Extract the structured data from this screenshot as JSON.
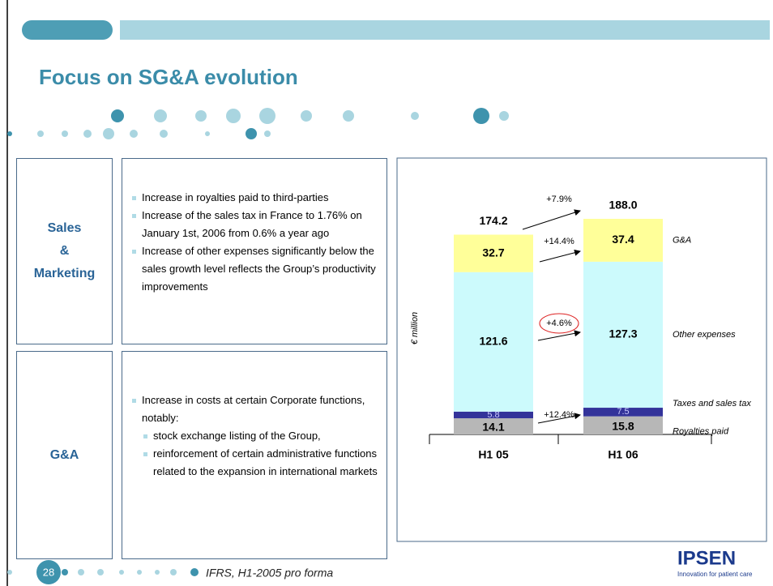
{
  "title": "Focus on SG&A evolution",
  "panels": [
    {
      "label_lines": [
        "Sales",
        "&",
        "Marketing"
      ],
      "bullets": [
        "Increase in royalties paid to third-parties",
        "Increase of the sales tax in France to 1.76% on January 1st, 2006 from 0.6% a year ago",
        "Increase of other expenses significantly below the sales growth level reflects the Group’s productivity improvements"
      ],
      "sub_bullets": []
    },
    {
      "label_lines": [
        "G&A"
      ],
      "bullets": [
        "Increase in costs at certain Corporate functions, notably:"
      ],
      "sub_bullets": [
        "stock exchange listing of the Group,",
        "reinforcement of certain administrative functions related to the expansion in international markets"
      ]
    }
  ],
  "footer": {
    "page": "28",
    "note": "IFRS, H1-2005 pro forma",
    "logo": "IPSEN",
    "tagline": "Innovation for patient care"
  },
  "chart_data": {
    "type": "stacked_bar",
    "y_label": "€ million",
    "categories": [
      "H1 05",
      "H1 06"
    ],
    "series": [
      {
        "name": "Royalties paid",
        "color": "#b7b7b7",
        "values": [
          14.1,
          15.8
        ]
      },
      {
        "name": "Taxes and sales tax",
        "color": "#33339a",
        "values": [
          5.8,
          7.5
        ]
      },
      {
        "name": "Other expenses",
        "color": "#ccfafc",
        "values": [
          121.6,
          127.3
        ]
      },
      {
        "name": "G&A",
        "color": "#ffff99",
        "values": [
          32.7,
          37.4
        ]
      }
    ],
    "totals": [
      174.2,
      188
    ],
    "total_labels": [
      "174.2",
      "188.0"
    ],
    "annotations": [
      "+7.9%",
      "+14.4%",
      "+4.6%",
      "+12.4%"
    ]
  }
}
